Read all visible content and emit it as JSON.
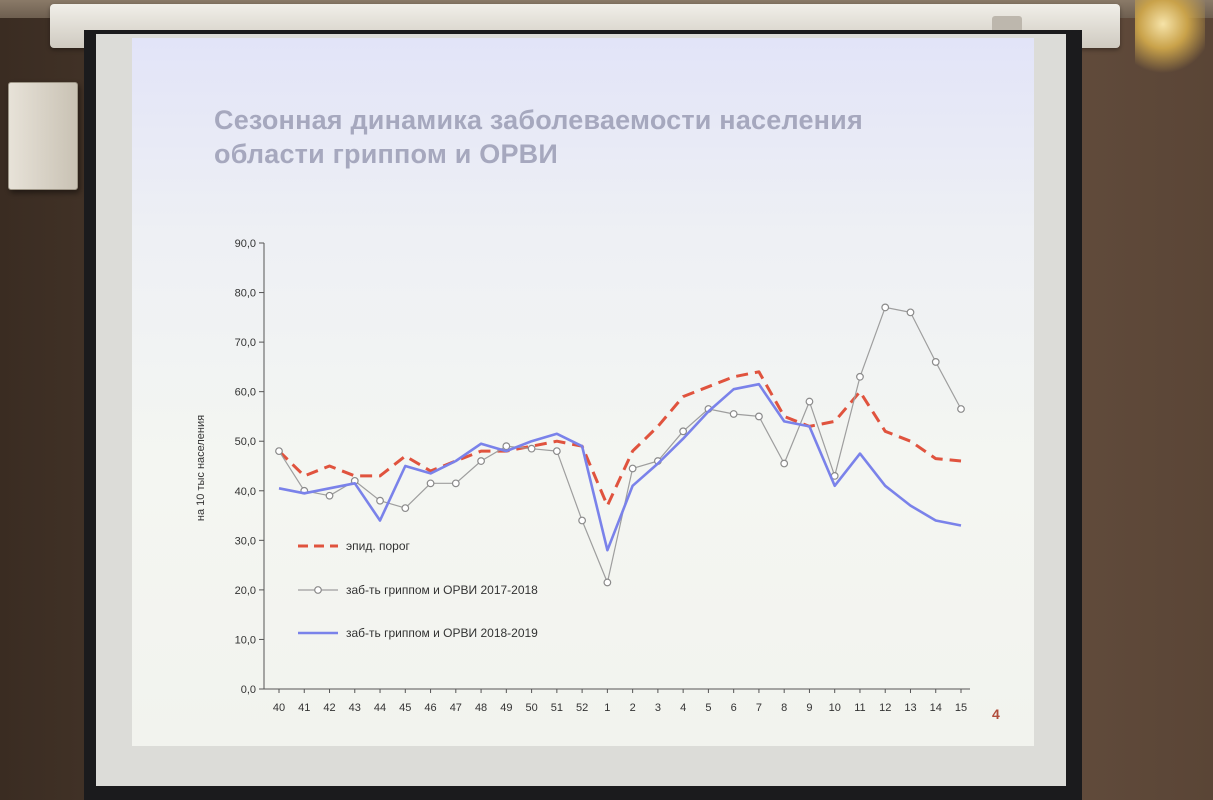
{
  "slide": {
    "title_line1": "Сезонная динамика заболеваемости населения",
    "title_line2": "области гриппом и ОРВИ",
    "page_number": "4"
  },
  "chart_data": {
    "type": "line",
    "title": "Сезонная динамика заболеваемости населения области гриппом и ОРВИ",
    "xlabel": "",
    "ylabel": "на 10 тыс населения",
    "ylim": [
      0,
      90
    ],
    "yticks": [
      "0,0",
      "10,0",
      "20,0",
      "30,0",
      "40,0",
      "50,0",
      "60,0",
      "70,0",
      "80,0",
      "90,0"
    ],
    "categories": [
      "40",
      "41",
      "42",
      "43",
      "44",
      "45",
      "46",
      "47",
      "48",
      "49",
      "50",
      "51",
      "52",
      "1",
      "2",
      "3",
      "4",
      "5",
      "6",
      "7",
      "8",
      "9",
      "10",
      "11",
      "12",
      "13",
      "14",
      "15"
    ],
    "grid": false,
    "legend_position": "lower-left",
    "series": [
      {
        "name": "эпид. порог",
        "style": "dashed",
        "color": "#e0533e",
        "values": [
          48.0,
          43.0,
          45.0,
          43.0,
          43.0,
          47.0,
          44.0,
          46.0,
          48.0,
          48.0,
          49.0,
          50.0,
          49.0,
          37.0,
          48.0,
          53.0,
          59.0,
          61.0,
          63.0,
          64.0,
          55.0,
          53.0,
          54.0,
          60.0,
          52.0,
          50.0,
          46.5,
          46.0
        ]
      },
      {
        "name": "заб-ть гриппом и ОРВИ 2017-2018",
        "style": "markers",
        "color": "#9e9e9e",
        "values": [
          48.0,
          40.0,
          39.0,
          42.0,
          38.0,
          36.5,
          41.5,
          41.5,
          46.0,
          49.0,
          48.5,
          48.0,
          34.0,
          21.5,
          44.5,
          46.0,
          52.0,
          56.5,
          55.5,
          55.0,
          45.5,
          58.0,
          43.0,
          63.0,
          77.0,
          76.0,
          66.0,
          56.5
        ]
      },
      {
        "name": "заб-ть гриппом и ОРВИ 2018-2019",
        "style": "solid",
        "color": "#7a82ea",
        "values": [
          40.5,
          39.5,
          40.5,
          41.5,
          34.0,
          45.0,
          43.5,
          46.0,
          49.5,
          48.0,
          50.0,
          51.5,
          49.0,
          28.0,
          41.0,
          45.5,
          50.5,
          56.0,
          60.5,
          61.5,
          54.0,
          53.0,
          41.0,
          47.5,
          41.0,
          37.0,
          34.0,
          33.0
        ]
      }
    ]
  }
}
